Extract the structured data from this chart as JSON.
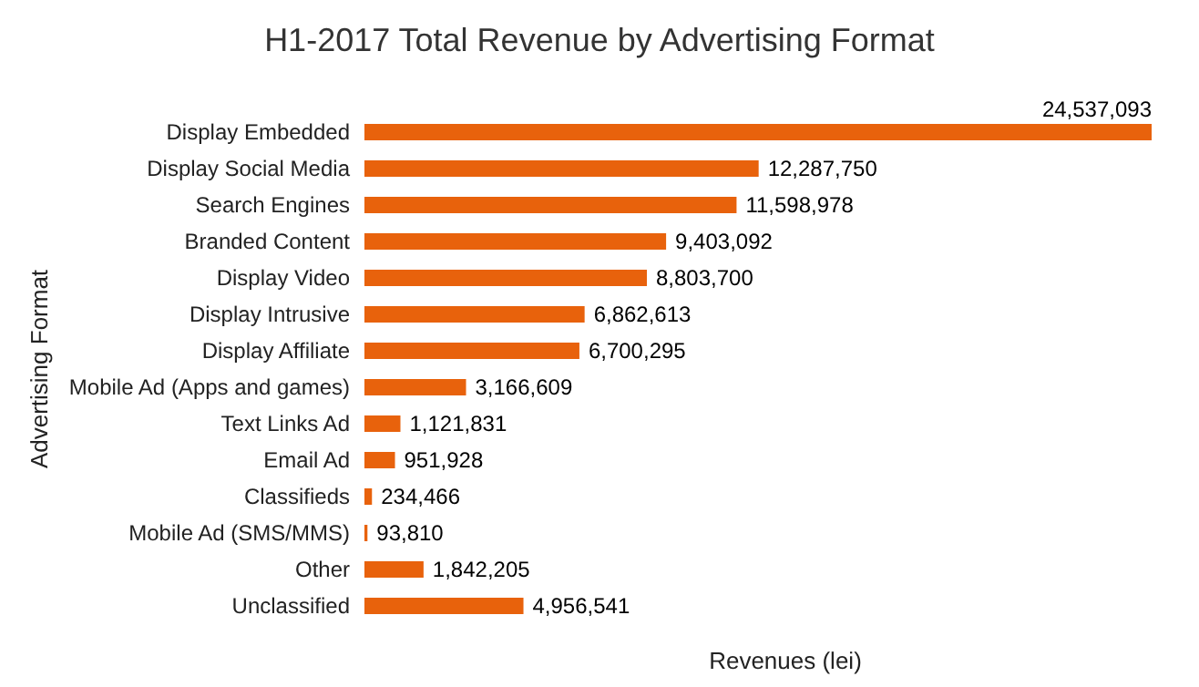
{
  "chart_data": {
    "type": "bar",
    "orientation": "horizontal",
    "title": "H1-2017 Total Revenue by Advertising Format",
    "xlabel": "Revenues (lei)",
    "ylabel": "Advertising Format",
    "categories": [
      "Display Embedded",
      "Display Social Media",
      "Search Engines",
      "Branded Content",
      "Display Video",
      "Display Intrusive",
      "Display Affiliate",
      "Mobile Ad (Apps and games)",
      "Text Links Ad",
      "Email Ad",
      "Classifieds",
      "Mobile Ad (SMS/MMS)",
      "Other",
      "Unclassified"
    ],
    "values": [
      24537093,
      12287750,
      11598978,
      9403092,
      8803700,
      6862613,
      6700295,
      3166609,
      1121831,
      951928,
      234466,
      93810,
      1842205,
      4956541
    ],
    "value_labels": [
      "24,537,093",
      "12,287,750",
      "11,598,978",
      "9,403,092",
      "8,803,700",
      "6,862,613",
      "6,700,295",
      "3,166,609",
      "1,121,831",
      "951,928",
      "234,466",
      "93,810",
      "1,842,205",
      "4,956,541"
    ],
    "color": "#e8620c",
    "tick_labels": "y"
  }
}
